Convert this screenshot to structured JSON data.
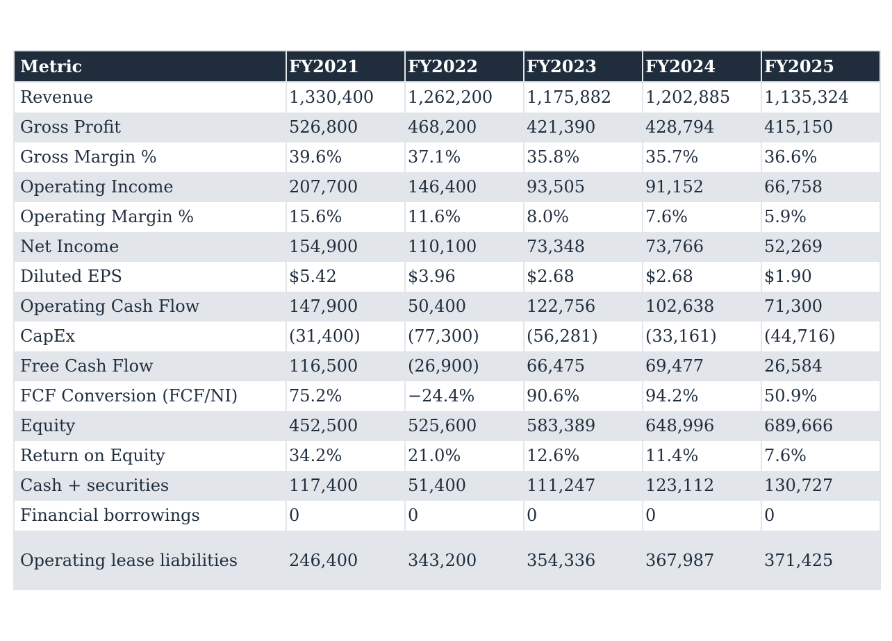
{
  "table": {
    "header": [
      "Metric",
      "FY2021",
      "FY2022",
      "FY2023",
      "FY2024",
      "FY2025"
    ],
    "rows": [
      [
        "Revenue",
        "1,330,400",
        "1,262,200",
        "1,175,882",
        "1,202,885",
        "1,135,324"
      ],
      [
        "Gross Profit",
        "526,800",
        "468,200",
        "421,390",
        "428,794",
        "415,150"
      ],
      [
        "Gross Margin %",
        "39.6%",
        "37.1%",
        "35.8%",
        "35.7%",
        "36.6%"
      ],
      [
        "Operating Income",
        "207,700",
        "146,400",
        "93,505",
        "91,152",
        "66,758"
      ],
      [
        "Operating Margin %",
        "15.6%",
        "11.6%",
        "8.0%",
        "7.6%",
        "5.9%"
      ],
      [
        "Net Income",
        "154,900",
        "110,100",
        "73,348",
        "73,766",
        "52,269"
      ],
      [
        "Diluted EPS",
        "$5.42",
        "$3.96",
        "$2.68",
        "$2.68",
        "$1.90"
      ],
      [
        "Operating Cash Flow",
        "147,900",
        "50,400",
        "122,756",
        "102,638",
        "71,300"
      ],
      [
        "CapEx",
        "(31,400)",
        "(77,300)",
        "(56,281)",
        "(33,161)",
        "(44,716)"
      ],
      [
        "Free Cash Flow",
        "116,500",
        "(26,900)",
        "66,475",
        "69,477",
        "26,584"
      ],
      [
        "FCF Conversion (FCF/NI)",
        "75.2%",
        "−24.4%",
        "90.6%",
        "94.2%",
        "50.9%"
      ],
      [
        "Equity",
        "452,500",
        "525,600",
        "583,389",
        "648,996",
        "689,666"
      ],
      [
        "Return on Equity",
        "34.2%",
        "21.0%",
        "12.6%",
        "11.4%",
        "7.6%"
      ],
      [
        "Cash + securities",
        "117,400",
        "51,400",
        "111,247",
        "123,112",
        "130,727"
      ],
      [
        "Financial borrowings",
        "0",
        "0",
        "0",
        "0",
        "0"
      ],
      [
        "Operating lease liabilities",
        "246,400",
        "343,200",
        "354,336",
        "367,987",
        "371,425"
      ]
    ]
  },
  "colors": {
    "header_bg": "#1f2d3d",
    "header_text": "#ffffff",
    "stripe_bg": "#e2e6eb",
    "text": "#1f2d3d"
  }
}
